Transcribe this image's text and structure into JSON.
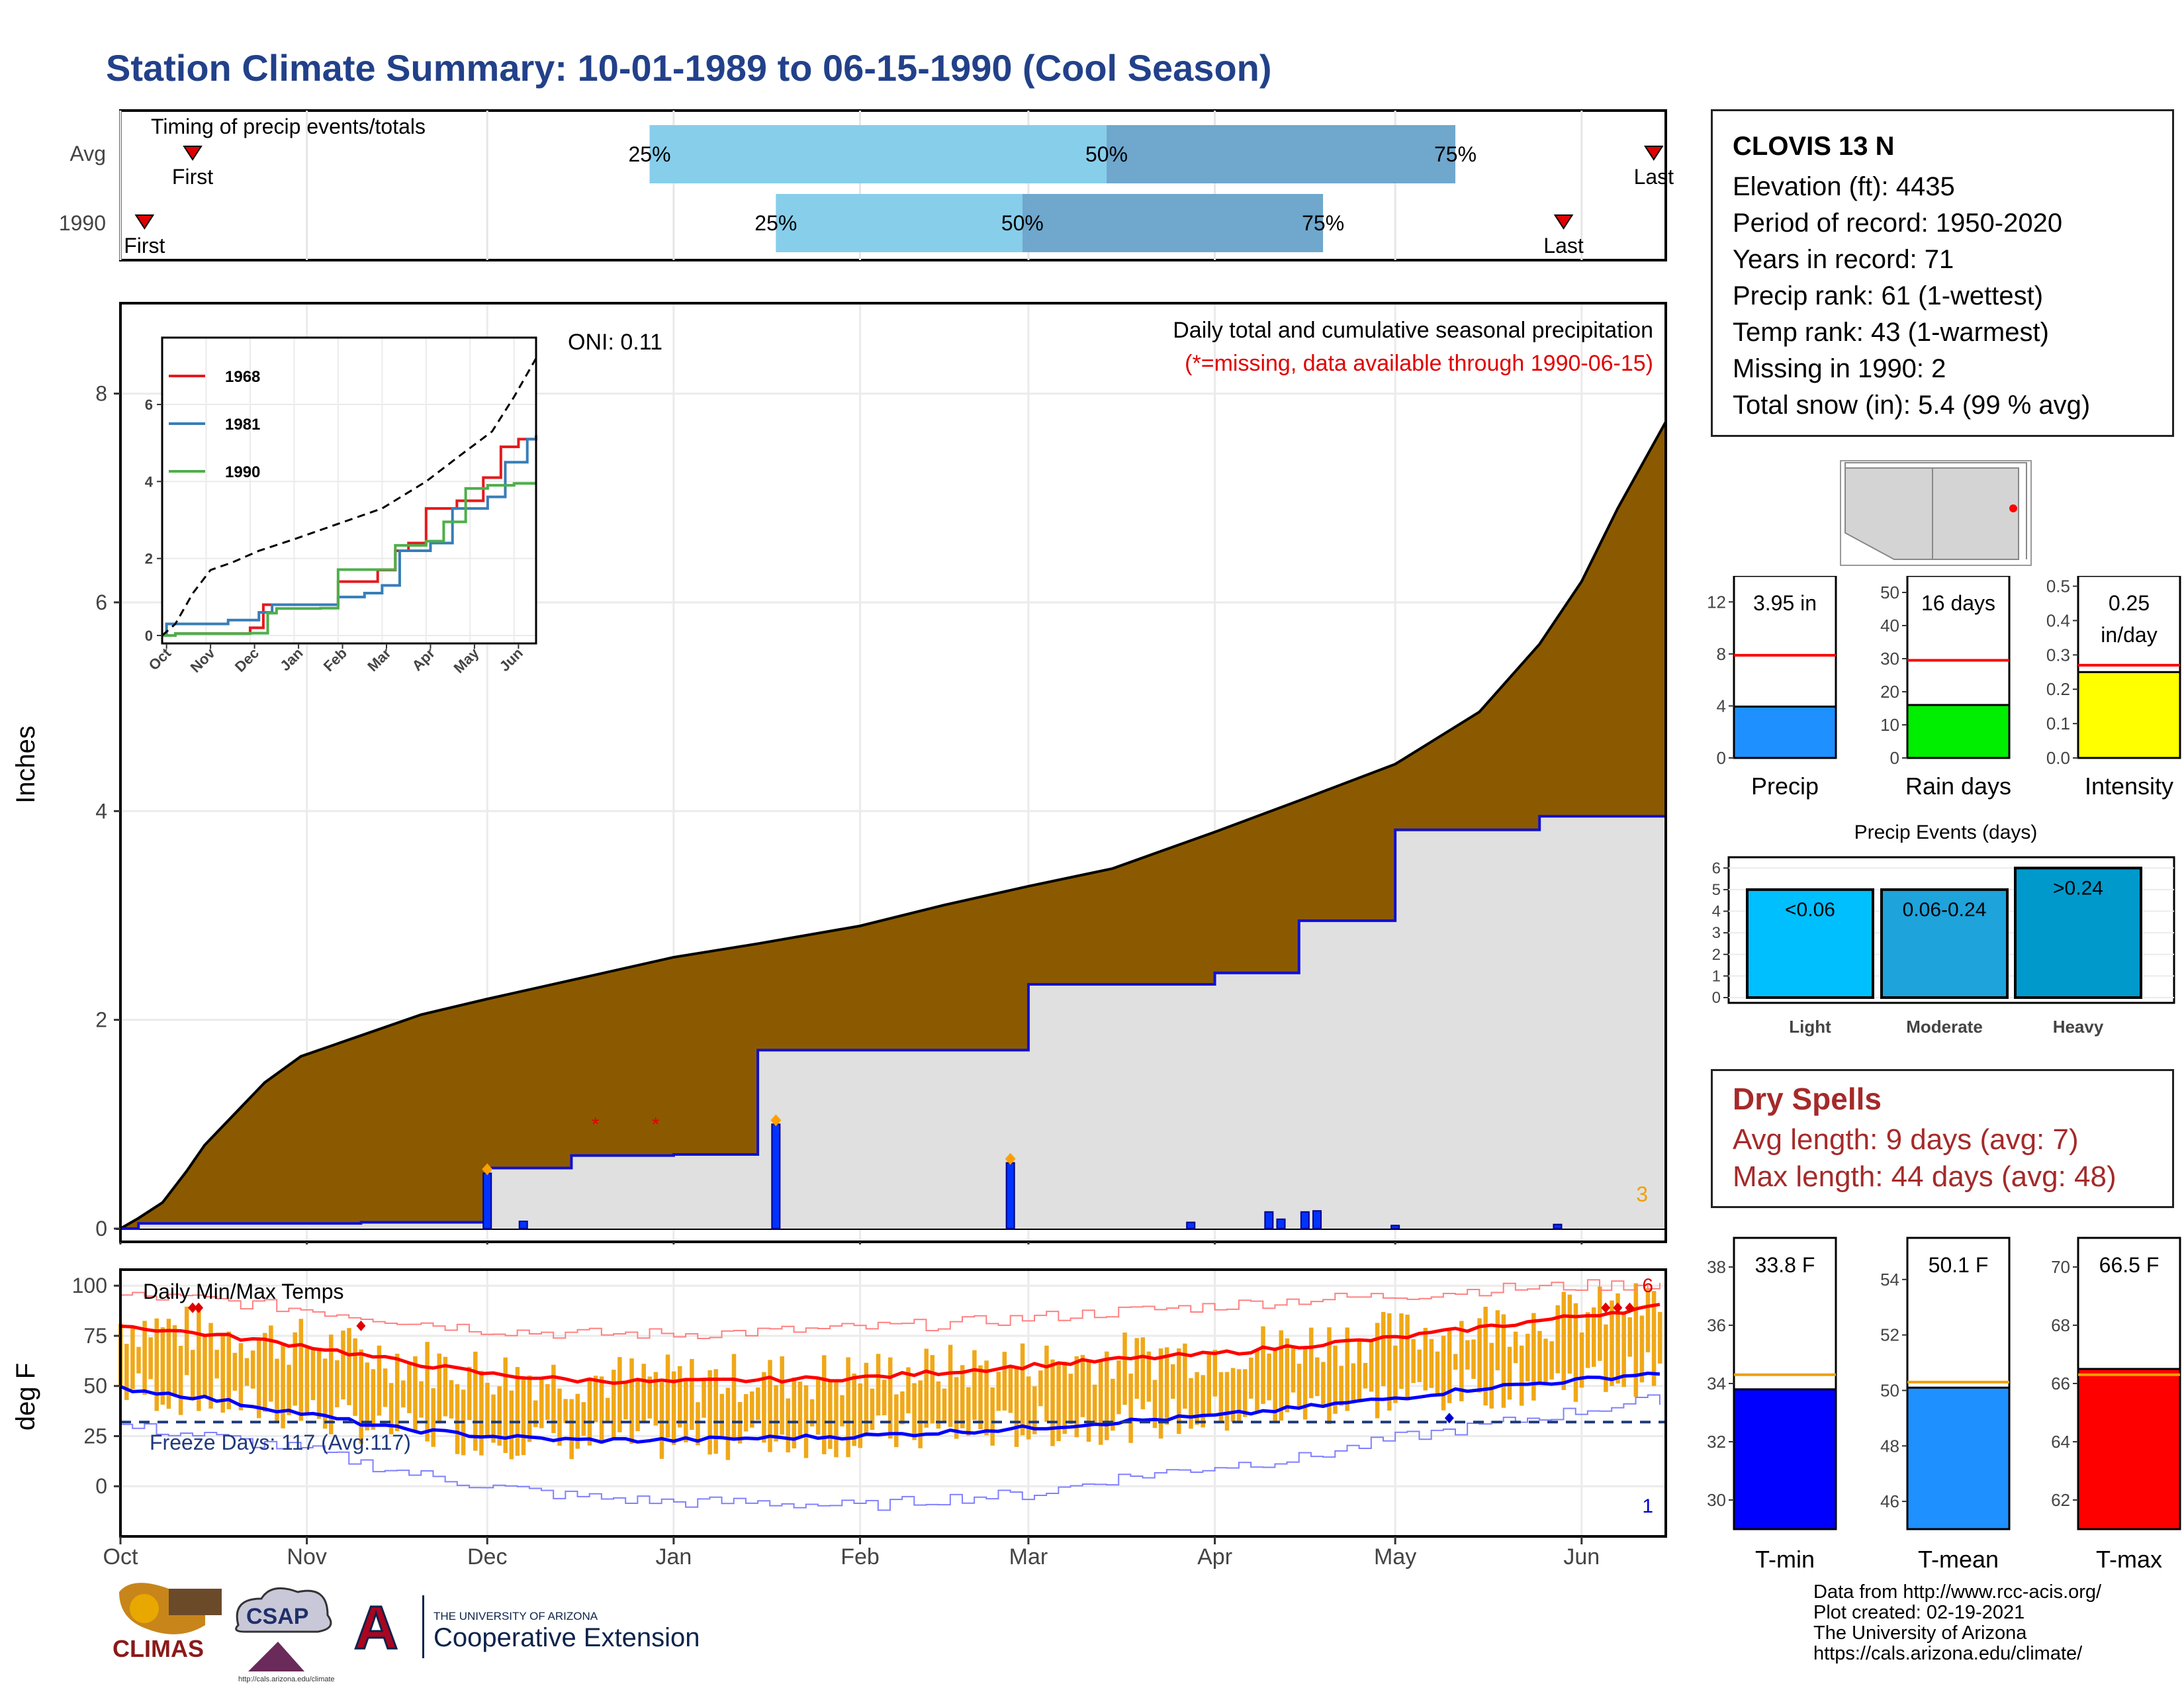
{
  "title": "Station Climate Summary: 10-01-1989 to 06-15-1990 (Cool Season)",
  "timing": {
    "label": "Timing of precip events/totals",
    "rows": [
      {
        "name": "Avg",
        "first": "First",
        "last": "Last",
        "p25": "25%",
        "p50": "50%",
        "p75": "75%"
      },
      {
        "name": "1990",
        "first": "First",
        "last": "Last",
        "p25": "25%",
        "p50": "50%",
        "p75": "75%"
      }
    ],
    "colors": {
      "light": "#87ceeb",
      "dark": "#6fa7cd",
      "marker": "#e00000"
    }
  },
  "precip": {
    "annotation_main": "Daily total and cumulative seasonal precipitation",
    "annotation_missing": "(*=missing, data available through 1990-06-15)",
    "oni": "ONI: 0.11",
    "ylabel": "Inches",
    "yticks": [
      "0",
      "2",
      "4",
      "6",
      "8"
    ],
    "count_label": "3",
    "colors": {
      "avg_fill": "#8b5a00",
      "year_fill": "#e0e0e0",
      "line": "#1010d0"
    }
  },
  "inset": {
    "xticks": [
      "Oct",
      "Nov",
      "Dec",
      "Jan",
      "Feb",
      "Mar",
      "Apr",
      "May",
      "Jun"
    ],
    "yticks": [
      "0",
      "2",
      "4",
      "6"
    ],
    "legend": [
      {
        "label": "1968",
        "color": "#e41a1c"
      },
      {
        "label": "1981",
        "color": "#377eb8"
      },
      {
        "label": "1990",
        "color": "#4daf4a"
      }
    ]
  },
  "temps": {
    "label": "Daily Min/Max Temps",
    "freeze": "Freeze Days: 117 (Avg:117)",
    "ylabel": "deg F",
    "yticks": [
      "0",
      "25",
      "50",
      "75",
      "100"
    ],
    "count_hi": "6",
    "count_lo": "1",
    "colors": {
      "bar": "#f0a818",
      "max": "#ff0000",
      "min": "#0000ff",
      "freeze": "#1f3a7a"
    }
  },
  "xaxis": [
    "Oct",
    "Nov",
    "Dec",
    "Jan",
    "Feb",
    "Mar",
    "Apr",
    "May",
    "Jun"
  ],
  "station": {
    "name": "CLOVIS 13 N",
    "lines": [
      "Elevation (ft): 4435",
      "Period of record: 1950-2020",
      "Years in record: 71",
      "Precip rank: 61 (1-wettest)",
      "Temp rank: 43 (1-warmest)",
      "Missing in 1990: 2",
      "Total snow (in): 5.4 (99 % avg)"
    ]
  },
  "gauges": [
    {
      "name": "Precip",
      "label": "3.95 in",
      "label2": "",
      "value": 3.95,
      "avg": 7.9,
      "ymax": 14,
      "ticks": [
        "0",
        "4",
        "8",
        "12"
      ],
      "tickvals": [
        0,
        4,
        8,
        12
      ],
      "color": "#1e90ff"
    },
    {
      "name": "Rain days",
      "label": "16 days",
      "label2": "",
      "value": 16,
      "avg": 29.5,
      "ymax": 55,
      "ticks": [
        "0",
        "10",
        "20",
        "30",
        "40",
        "50"
      ],
      "tickvals": [
        0,
        10,
        20,
        30,
        40,
        50
      ],
      "color": "#00ee00"
    },
    {
      "name": "Intensity",
      "label": "0.25",
      "label2": "in/day",
      "value": 0.25,
      "avg": 0.27,
      "ymax": 0.53,
      "ticks": [
        "0.0",
        "0.1",
        "0.2",
        "0.3",
        "0.4",
        "0.5"
      ],
      "tickvals": [
        0,
        0.1,
        0.2,
        0.3,
        0.4,
        0.5
      ],
      "color": "#ffff00"
    }
  ],
  "events": {
    "title": "Precip Events (days)",
    "yticks": [
      "0",
      "1",
      "2",
      "3",
      "4",
      "5",
      "6"
    ],
    "bars": [
      {
        "cat": "Light",
        "label": "<0.06",
        "value": 5,
        "color": "#00bfff"
      },
      {
        "cat": "Moderate",
        "label": "0.06-0.24",
        "value": 5,
        "color": "#1ea3db"
      },
      {
        "cat": "Heavy",
        "label": ">0.24",
        "value": 6,
        "color": "#0099cc"
      }
    ]
  },
  "dry_spells": {
    "title": "Dry Spells",
    "avg_length": "Avg length: 9 days (avg: 7)",
    "max_length": "Max length: 44 days (avg: 48)"
  },
  "temp_gauges": [
    {
      "name": "T-min",
      "label": "33.8 F",
      "value": 33.8,
      "avg": 34.3,
      "ymin": 29,
      "ymax": 39,
      "ticks": [
        "30",
        "32",
        "34",
        "36",
        "38"
      ],
      "tickvals": [
        30,
        32,
        34,
        36,
        38
      ],
      "color": "#0000ff"
    },
    {
      "name": "T-mean",
      "label": "50.1 F",
      "value": 50.1,
      "avg": 50.3,
      "ymin": 45,
      "ymax": 55.5,
      "ticks": [
        "46",
        "48",
        "50",
        "52",
        "54"
      ],
      "tickvals": [
        46,
        48,
        50,
        52,
        54
      ],
      "color": "#1e90ff"
    },
    {
      "name": "T-max",
      "label": "66.5 F",
      "value": 66.5,
      "avg": 66.3,
      "ymin": 61,
      "ymax": 71,
      "ticks": [
        "62",
        "64",
        "66",
        "68",
        "70"
      ],
      "tickvals": [
        62,
        64,
        66,
        68,
        70
      ],
      "color": "#ff0000"
    }
  ],
  "logos": {
    "climas": "CLIMAS",
    "csap": "CSAP",
    "csap_url": "http://cals.arizona.edu/climate",
    "ua_small": "THE UNIVERSITY OF ARIZONA",
    "ua_big": "Cooperative Extension"
  },
  "credits": [
    "Data from http://www.rcc-acis.org/",
    "Plot created: 02-19-2021",
    "The University of Arizona",
    "https://cals.arizona.edu/climate/"
  ],
  "chart_data": [
    {
      "type": "bar",
      "title": "Timing of precip events/totals",
      "categories": [
        "Avg",
        "1990"
      ],
      "series": [
        {
          "name": "25%",
          "values": [
            "1989-12-28",
            "1990-01-18"
          ]
        },
        {
          "name": "50%",
          "values": [
            "1990-03-14",
            "1990-02-28"
          ]
        },
        {
          "name": "75%",
          "values": [
            "1990-05-11",
            "1990-04-19"
          ]
        }
      ],
      "first": [
        "1989-10-13",
        "1989-10-05"
      ],
      "last": [
        "1990-06-13",
        "1990-05-29"
      ]
    },
    {
      "type": "area",
      "title": "Daily total and cumulative seasonal precipitation",
      "ylabel": "Inches",
      "ylim": [
        0,
        8.6
      ],
      "x": [
        "1989-10-01",
        "1989-10-04",
        "1989-10-08",
        "1989-10-12",
        "1989-10-15",
        "1989-10-20",
        "1989-10-25",
        "1989-10-31",
        "1989-11-10",
        "1989-11-20",
        "1989-12-01",
        "1989-12-15",
        "1990-01-01",
        "1990-01-15",
        "1990-02-01",
        "1990-02-15",
        "1990-03-01",
        "1990-03-15",
        "1990-04-01",
        "1990-04-15",
        "1990-05-01",
        "1990-05-15",
        "1990-05-25",
        "1990-06-01",
        "1990-06-07",
        "1990-06-15"
      ],
      "series": [
        {
          "values": [
            0.0,
            0.1,
            0.25,
            0.55,
            0.8,
            1.1,
            1.4,
            1.65,
            1.85,
            2.05,
            2.2,
            2.38,
            2.6,
            2.73,
            2.9,
            3.1,
            3.28,
            3.45,
            3.8,
            4.1,
            4.45,
            4.95,
            5.6,
            6.2,
            6.9,
            7.73
          ]
        },
        {
          "values": [
            0.0,
            0.05,
            0.05,
            0.05,
            0.05,
            0.05,
            0.05,
            0.05,
            0.06,
            0.06,
            0.58,
            0.7,
            0.71,
            1.71,
            1.71,
            1.71,
            2.34,
            2.34,
            2.45,
            2.95,
            3.82,
            3.82,
            3.95,
            3.95,
            3.95,
            3.95
          ]
        }
      ],
      "daily_totals": [
        {
          "date": "1989-12-01",
          "value": 0.53
        },
        {
          "date": "1989-12-07",
          "value": 0.07
        },
        {
          "date": "1990-01-18",
          "value": 1.0
        },
        {
          "date": "1990-02-26",
          "value": 0.63
        },
        {
          "date": "1990-03-28",
          "value": 0.06
        },
        {
          "date": "1990-04-10",
          "value": 0.16
        },
        {
          "date": "1990-04-12",
          "value": 0.09
        },
        {
          "date": "1990-04-16",
          "value": 0.16
        },
        {
          "date": "1990-04-18",
          "value": 0.17
        },
        {
          "date": "1990-05-01",
          "value": 0.03
        },
        {
          "date": "1990-05-28",
          "value": 0.04
        }
      ]
    },
    {
      "type": "line",
      "title": "Daily Min/Max Temps",
      "ylabel": "deg F",
      "ylim": [
        -25,
        108
      ],
      "x": [
        "1989-10-01",
        "1989-10-15",
        "1989-11-01",
        "1989-11-15",
        "1989-12-01",
        "1989-12-15",
        "1990-01-01",
        "1990-01-15",
        "1990-02-01",
        "1990-02-15",
        "1990-03-01",
        "1990-03-15",
        "1990-04-01",
        "1990-04-15",
        "1990-05-01",
        "1990-05-15",
        "1990-06-01",
        "1990-06-15"
      ],
      "series": [
        {
          "name": "avg max",
          "values": [
            80,
            76,
            70,
            63,
            56,
            53,
            52,
            53,
            54,
            57,
            60,
            63,
            66,
            70,
            74,
            79,
            85,
            90
          ]
        },
        {
          "name": "avg min",
          "values": [
            49,
            44,
            36,
            29,
            25,
            23,
            23,
            24,
            25,
            27,
            29,
            32,
            35,
            39,
            44,
            49,
            53,
            57
          ]
        },
        {
          "name": "record max",
          "values": [
            95,
            93,
            88,
            83,
            78,
            76,
            76,
            77,
            79,
            81,
            84,
            87,
            90,
            93,
            95,
            98,
            100,
            101
          ]
        },
        {
          "name": "record min",
          "values": [
            30,
            25,
            18,
            8,
            0,
            -5,
            -8,
            -8,
            -10,
            -6,
            -4,
            4,
            10,
            14,
            24,
            30,
            38,
            44
          ]
        }
      ],
      "freeze_line": 32
    },
    {
      "type": "bar",
      "categories": [
        "Precip"
      ],
      "values": [
        3.95
      ],
      "avg": 7.9,
      "ylim": [
        0,
        14
      ]
    },
    {
      "type": "bar",
      "categories": [
        "Rain days"
      ],
      "values": [
        16
      ],
      "avg": 29.5,
      "ylim": [
        0,
        55
      ]
    },
    {
      "type": "bar",
      "categories": [
        "Intensity"
      ],
      "values": [
        0.25
      ],
      "avg": 0.27,
      "ylim": [
        0,
        0.53
      ]
    },
    {
      "type": "bar",
      "title": "Precip Events (days)",
      "categories": [
        "Light",
        "Moderate",
        "Heavy"
      ],
      "values": [
        5,
        5,
        6
      ],
      "ylim": [
        0,
        6.5
      ]
    },
    {
      "type": "bar",
      "categories": [
        "T-min"
      ],
      "values": [
        33.8
      ],
      "avg": 34.3,
      "ylim": [
        29,
        39
      ]
    },
    {
      "type": "bar",
      "categories": [
        "T-mean"
      ],
      "values": [
        50.1
      ],
      "avg": 50.3,
      "ylim": [
        45,
        55.5
      ]
    },
    {
      "type": "bar",
      "categories": [
        "T-max"
      ],
      "values": [
        66.5
      ],
      "avg": 66.3,
      "ylim": [
        61,
        71
      ]
    }
  ]
}
